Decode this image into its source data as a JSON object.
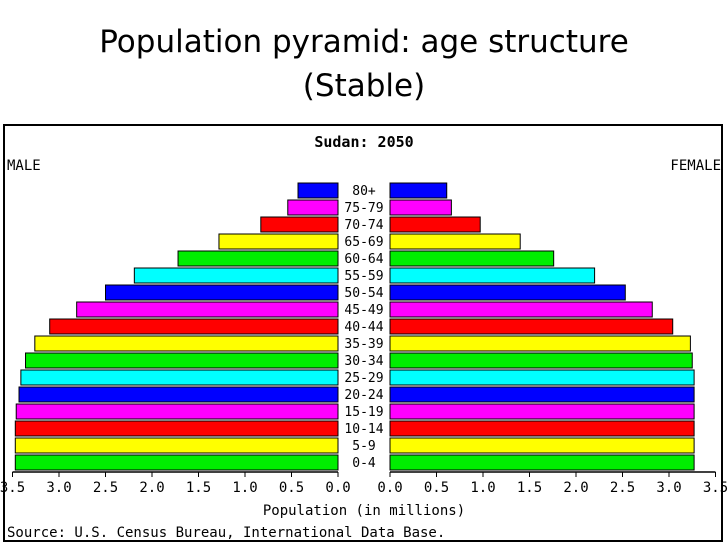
{
  "slide": {
    "title_line1": "Population pyramid: age structure",
    "title_line2": "(Stable)"
  },
  "chart_data": {
    "type": "bar",
    "title": "Sudan: 2050",
    "left_label": "MALE",
    "right_label": "FEMALE",
    "xlabel": "Population (in millions)",
    "source": "Source: U.S. Census Bureau, International Data Base.",
    "xlim": [
      0,
      3.5
    ],
    "ticks": [
      "3.5",
      "3.0",
      "2.5",
      "2.0",
      "1.5",
      "1.0",
      "0.5",
      "0.0",
      "0.0",
      "0.5",
      "1.0",
      "1.5",
      "2.0",
      "2.5",
      "3.0",
      "3.5"
    ],
    "categories": [
      "0-4",
      "5-9",
      "10-14",
      "15-19",
      "20-24",
      "25-29",
      "30-34",
      "35-39",
      "40-44",
      "45-49",
      "50-54",
      "55-59",
      "60-64",
      "65-69",
      "70-74",
      "75-79",
      "80+"
    ],
    "colors": [
      "#00ee00",
      "#ffff00",
      "#ff0000",
      "#ff00ff",
      "#0000ff",
      "#00ffff",
      "#00ee00",
      "#ffff00",
      "#ff0000",
      "#ff00ff",
      "#0000ff",
      "#00ffff",
      "#00ee00",
      "#ffff00",
      "#ff0000",
      "#ff00ff",
      "#0000ff"
    ],
    "series": [
      {
        "name": "MALE",
        "values": [
          3.47,
          3.47,
          3.47,
          3.46,
          3.43,
          3.41,
          3.36,
          3.26,
          3.1,
          2.81,
          2.5,
          2.19,
          1.72,
          1.28,
          0.83,
          0.54,
          0.43
        ]
      },
      {
        "name": "FEMALE",
        "values": [
          3.27,
          3.27,
          3.27,
          3.27,
          3.27,
          3.27,
          3.25,
          3.23,
          3.04,
          2.82,
          2.53,
          2.2,
          1.76,
          1.4,
          0.97,
          0.66,
          0.61
        ]
      }
    ]
  }
}
